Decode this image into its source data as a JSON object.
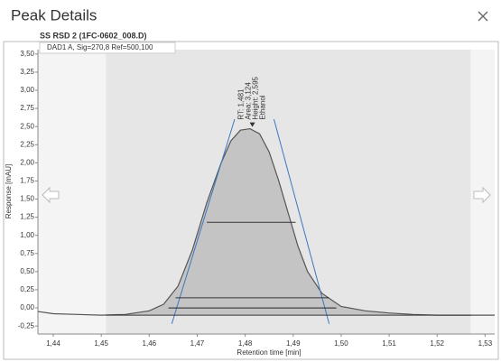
{
  "dialog": {
    "title": "Peak Details",
    "sample": "SS RSD 2 (1FC-0602_008.D)"
  },
  "chart_data": {
    "type": "line",
    "signal": "DAD1 A, Sig=270,8 Ref=500,100",
    "x_label": "Retention time [min]",
    "y_label": "Response [mAU]",
    "xlim": [
      1.4368,
      1.532
    ],
    "ylim": [
      -0.36,
      3.56
    ],
    "xticks": [
      {
        "value": 1.44,
        "label": "1,44"
      },
      {
        "value": 1.45,
        "label": "1,45"
      },
      {
        "value": 1.46,
        "label": "1,46"
      },
      {
        "value": 1.47,
        "label": "1,47"
      },
      {
        "value": 1.48,
        "label": "1,48"
      },
      {
        "value": 1.49,
        "label": "1,49"
      },
      {
        "value": 1.5,
        "label": "1,50"
      },
      {
        "value": 1.51,
        "label": "1,51"
      },
      {
        "value": 1.52,
        "label": "1,52"
      },
      {
        "value": 1.53,
        "label": "1,53"
      }
    ],
    "yticks": [
      {
        "value": 3.5,
        "label": "3,50"
      },
      {
        "value": 3.25,
        "label": "3,25"
      },
      {
        "value": 3,
        "label": "3,00"
      },
      {
        "value": 2.75,
        "label": "2,75"
      },
      {
        "value": 2.5,
        "label": "2,50"
      },
      {
        "value": 2.25,
        "label": "2,25"
      },
      {
        "value": 2,
        "label": "2,00"
      },
      {
        "value": 1.75,
        "label": "1,75"
      },
      {
        "value": 1.5,
        "label": "1,50"
      },
      {
        "value": 1.25,
        "label": "1,25"
      },
      {
        "value": 1,
        "label": "1,00"
      },
      {
        "value": 0.75,
        "label": "0,75"
      },
      {
        "value": 0.5,
        "label": "0,50"
      },
      {
        "value": 0.25,
        "label": "0,25"
      },
      {
        "value": 0,
        "label": "0,00"
      },
      {
        "value": -0.25,
        "label": "-0,25"
      }
    ],
    "integration_range": [
      1.451,
      1.527
    ],
    "series": [
      {
        "color": "#555555",
        "x": [
          1.4368,
          1.44,
          1.445,
          1.45,
          1.455,
          1.46,
          1.463,
          1.466,
          1.469,
          1.472,
          1.475,
          1.477,
          1.479,
          1.481,
          1.483,
          1.485,
          1.487,
          1.489,
          1.491,
          1.493,
          1.496,
          1.5,
          1.505,
          1.51,
          1.515,
          1.52,
          1.532
        ],
        "values": [
          -0.05,
          -0.08,
          -0.09,
          -0.1,
          -0.09,
          -0.04,
          0.05,
          0.3,
          0.8,
          1.45,
          2.0,
          2.3,
          2.45,
          2.47,
          2.4,
          2.15,
          1.75,
          1.3,
          0.85,
          0.5,
          0.2,
          0.02,
          -0.04,
          -0.07,
          -0.09,
          -0.1,
          -0.1
        ]
      }
    ],
    "lines": [
      {
        "color": "#3a78c0",
        "x": [
          1.4647,
          1.4778
        ],
        "values": [
          -0.22,
          2.6
        ]
      },
      {
        "color": "#3a78c0",
        "x": [
          1.486,
          1.4975
        ],
        "values": [
          2.6,
          -0.22
        ]
      },
      {
        "color": "#333333",
        "x": [
          1.472,
          1.4905
        ],
        "values": [
          1.18,
          1.18
        ]
      },
      {
        "color": "#333333",
        "x": [
          1.4655,
          1.4975
        ],
        "values": [
          0.14,
          0.14
        ]
      },
      {
        "color": "#222222",
        "x": [
          1.464,
          1.499
        ],
        "values": [
          0,
          0
        ]
      },
      {
        "color": "#333333",
        "x": [
          1.451,
          1.527
        ],
        "values": [
          -0.1,
          -0.1
        ]
      }
    ],
    "annotations": [
      "RT: 1,481",
      "Area: 3,124",
      "Height: 2,595",
      "Ethanol"
    ],
    "annotation_x": 1.4815
  }
}
